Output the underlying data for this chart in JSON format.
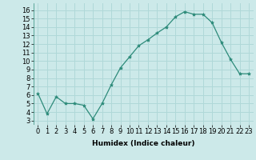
{
  "x": [
    0,
    1,
    2,
    3,
    4,
    5,
    6,
    7,
    8,
    9,
    10,
    11,
    12,
    13,
    14,
    15,
    16,
    17,
    18,
    19,
    20,
    21,
    22,
    23
  ],
  "y": [
    6.2,
    3.8,
    5.8,
    5.0,
    5.0,
    4.8,
    3.2,
    5.0,
    7.2,
    9.2,
    10.5,
    11.8,
    12.5,
    13.3,
    14.0,
    15.2,
    15.8,
    15.5,
    15.5,
    14.5,
    12.2,
    10.2,
    8.5,
    8.5
  ],
  "line_color": "#2d8b7a",
  "marker": "*",
  "marker_size": 3,
  "bg_color": "#cce9e9",
  "grid_color": "#b0d8d8",
  "xlabel": "Humidex (Indice chaleur)",
  "ylabel_ticks": [
    3,
    4,
    5,
    6,
    7,
    8,
    9,
    10,
    11,
    12,
    13,
    14,
    15,
    16
  ],
  "xlim": [
    -0.5,
    23.5
  ],
  "ylim": [
    2.5,
    16.8
  ],
  "xticks": [
    0,
    1,
    2,
    3,
    4,
    5,
    6,
    7,
    8,
    9,
    10,
    11,
    12,
    13,
    14,
    15,
    16,
    17,
    18,
    19,
    20,
    21,
    22,
    23
  ],
  "label_fontsize": 6.5,
  "tick_fontsize": 6.0
}
